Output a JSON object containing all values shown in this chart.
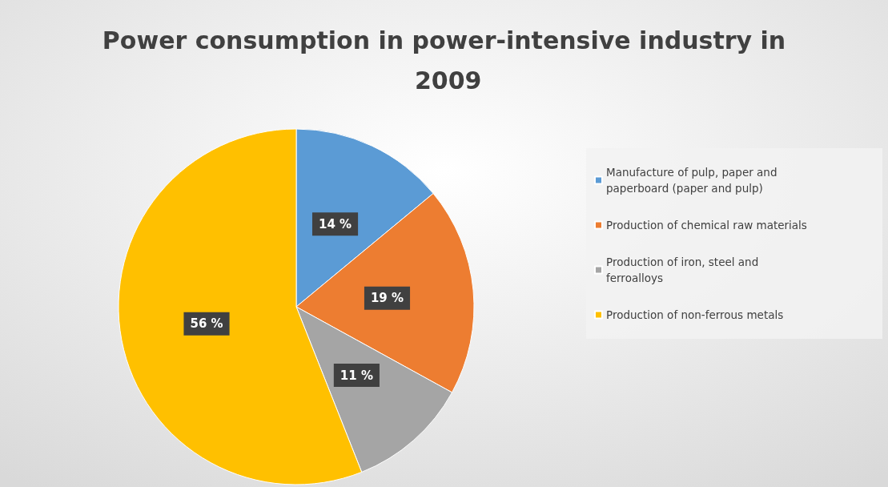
{
  "chart_data": {
    "type": "pie",
    "title": "Power consumption in power-intensive industry in 2009",
    "categories": [
      "Manufacture of pulp, paper and paperboard (paper and pulp)",
      "Production of chemical raw materials",
      "Production of iron, steel and ferroalloys",
      "Production of non-ferrous metals"
    ],
    "values": [
      14,
      19,
      11,
      56
    ],
    "value_labels": [
      "14 %",
      "19 %",
      "11 %",
      "56 %"
    ],
    "colors": [
      "#5b9bd5",
      "#ed7d31",
      "#a5a5a5",
      "#ffc000"
    ],
    "legend": "right"
  }
}
